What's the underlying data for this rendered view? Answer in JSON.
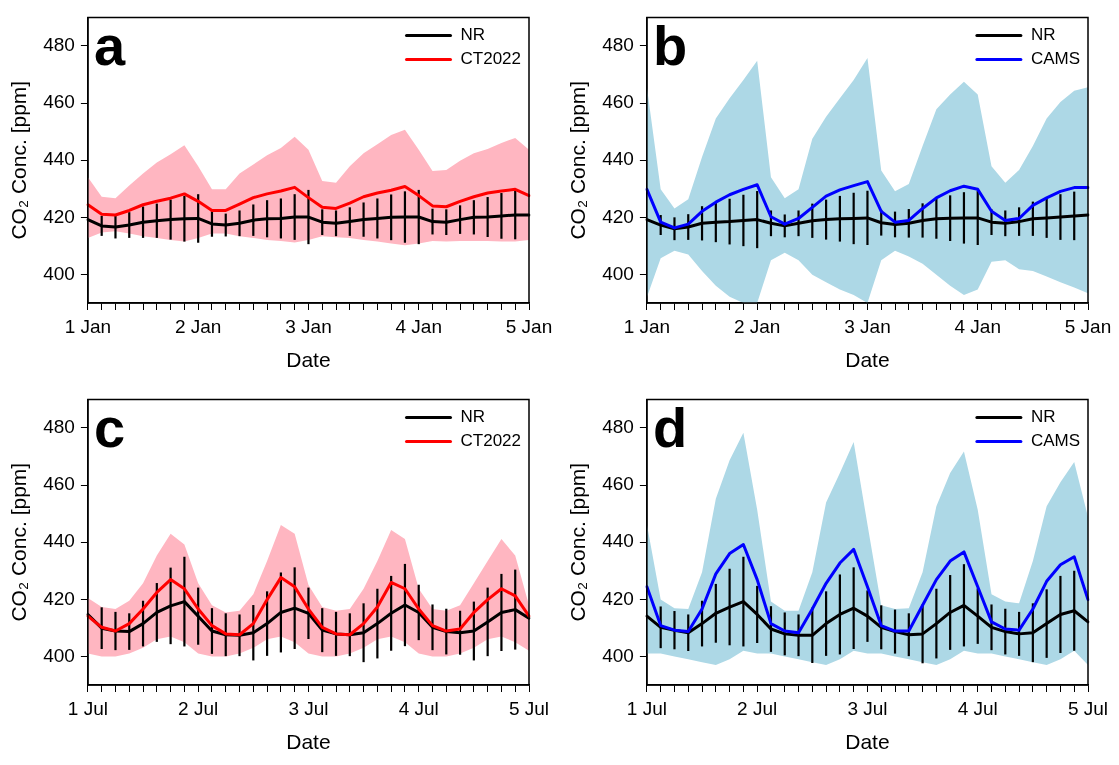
{
  "chart_data": [
    {
      "type": "line",
      "xlabel": "Date",
      "ylabel": "CO₂ Conc. [ppm]",
      "annotations": [
        "a"
      ],
      "legend": "top right",
      "grid": false,
      "ylim": [
        390,
        490
      ],
      "yticks": [
        400,
        420,
        440,
        460,
        480
      ],
      "categories": [
        "1 Jan",
        null,
        null,
        null,
        null,
        null,
        null,
        null,
        "2 Jan",
        null,
        null,
        null,
        null,
        null,
        null,
        null,
        "3 Jan",
        null,
        null,
        null,
        null,
        null,
        null,
        null,
        "4 Jan",
        null,
        null,
        null,
        null,
        null,
        null,
        null,
        "5 Jan"
      ],
      "series": [
        {
          "name": "NR",
          "color": "#000000",
          "values": [
            419.2,
            417.0,
            416.6,
            417.3,
            418.3,
            418.8,
            419.2,
            419.5,
            419.6,
            417.7,
            417.3,
            417.9,
            419.0,
            419.5,
            419.6,
            420.1,
            420.1,
            418.3,
            417.9,
            418.5,
            419.2,
            419.6,
            420.0,
            420.1,
            420.1,
            418.5,
            418.3,
            419.2,
            420.0,
            420.1,
            420.5,
            420.8,
            420.8
          ],
          "errors": [
            null,
            3.5,
            4,
            4.5,
            5.5,
            6,
            7,
            8,
            8.5,
            4.5,
            4,
            4.5,
            5.5,
            6.5,
            7,
            8,
            9.5,
            4.5,
            4.5,
            5,
            6,
            7,
            8,
            9,
            9.5,
            4.5,
            4.5,
            5,
            6,
            7,
            8,
            8.5,
            null
          ]
        },
        {
          "name": "CT2022",
          "color": "#ff0000",
          "values": [
            424.4,
            421.1,
            420.8,
            422.4,
            424.4,
            425.6,
            426.7,
            428.2,
            425.6,
            422.4,
            422.4,
            424.6,
            426.9,
            428.2,
            429.2,
            430.5,
            426.9,
            423.5,
            423.1,
            425.0,
            427.2,
            428.5,
            429.5,
            430.8,
            427.6,
            424.0,
            423.7,
            425.6,
            427.2,
            428.5,
            429.2,
            429.8,
            427.6
          ],
          "upper": [
            434.0,
            427.2,
            426.7,
            431.1,
            435.3,
            439.2,
            442.1,
            445.2,
            437.9,
            429.8,
            429.8,
            435.3,
            438.5,
            441.7,
            444.3,
            448.2,
            443.7,
            432.7,
            432.1,
            437.9,
            442.4,
            445.6,
            448.8,
            450.7,
            443.7,
            436.2,
            436.6,
            439.8,
            442.4,
            443.9,
            446.0,
            447.8,
            443.7
          ],
          "lower": [
            412.8,
            414.7,
            415.1,
            414.3,
            413.4,
            412.8,
            412.1,
            411.5,
            412.8,
            414.3,
            414.3,
            413.4,
            412.8,
            412.1,
            411.7,
            411.2,
            412.1,
            413.4,
            413.0,
            412.8,
            412.1,
            411.5,
            410.8,
            410.2,
            410.8,
            411.7,
            411.5,
            411.7,
            411.7,
            411.7,
            411.5,
            411.5,
            412.1
          ]
        }
      ]
    },
    {
      "type": "line",
      "xlabel": "Date",
      "ylabel": "CO₂ Conc. [ppm]",
      "annotations": [
        "b"
      ],
      "legend": "top right",
      "grid": false,
      "ylim": [
        390,
        490
      ],
      "yticks": [
        400,
        420,
        440,
        460,
        480
      ],
      "categories": [
        "1 Jan",
        null,
        null,
        null,
        null,
        null,
        null,
        null,
        "2 Jan",
        null,
        null,
        null,
        null,
        null,
        null,
        null,
        "3 Jan",
        null,
        null,
        null,
        null,
        null,
        null,
        null,
        "4 Jan",
        null,
        null,
        null,
        null,
        null,
        null,
        null,
        "5 Jan"
      ],
      "series": [
        {
          "name": "NR",
          "color": "#000000",
          "values": [
            419.2,
            417.3,
            416.0,
            416.6,
            417.9,
            418.3,
            418.5,
            418.9,
            419.2,
            417.9,
            417.0,
            417.9,
            418.8,
            419.2,
            419.5,
            419.6,
            419.8,
            418.1,
            417.5,
            417.9,
            418.9,
            419.5,
            419.7,
            419.8,
            419.8,
            418.3,
            417.9,
            418.5,
            419.5,
            419.8,
            420.1,
            420.5,
            420.8
          ],
          "errors": [
            null,
            3.5,
            4,
            4.5,
            6,
            7,
            8,
            9,
            10,
            4.5,
            4,
            4.5,
            6,
            7,
            8,
            9,
            9.5,
            4.5,
            4.5,
            5,
            6,
            7,
            8,
            9,
            9.5,
            4.5,
            4.5,
            5,
            6,
            7,
            8,
            8.5,
            null
          ]
        },
        {
          "name": "CAMS",
          "color": "#0000ff",
          "values": [
            429.8,
            418.3,
            416.3,
            417.6,
            422.1,
            425.3,
            427.9,
            429.8,
            431.4,
            420.2,
            417.6,
            419.6,
            423.5,
            427.4,
            429.6,
            431.1,
            432.5,
            422.1,
            418.3,
            418.9,
            423.1,
            426.8,
            429.3,
            430.9,
            429.8,
            422.1,
            418.9,
            419.6,
            424.2,
            426.8,
            429.1,
            430.4,
            430.4
          ],
          "upper": [
            465.5,
            429.8,
            423.1,
            426.3,
            441.1,
            454.6,
            461.7,
            468.1,
            474.8,
            434.0,
            426.7,
            429.8,
            447.5,
            455.2,
            461.7,
            468.1,
            475.8,
            436.4,
            429.1,
            431.7,
            445.0,
            457.8,
            463.0,
            467.5,
            463.0,
            437.9,
            432.1,
            436.6,
            445.0,
            454.6,
            460.4,
            464.3,
            465.5
          ],
          "lower": [
            392,
            405.7,
            408.3,
            407.0,
            401.2,
            396.0,
            392.2,
            390,
            390,
            405.0,
            407.6,
            405.0,
            399.9,
            397.3,
            394.7,
            392.8,
            390,
            405.0,
            408.3,
            406.3,
            403.7,
            399.9,
            396.0,
            392.8,
            394.7,
            404.4,
            405.0,
            401.8,
            401.2,
            399.3,
            397.3,
            395.4,
            393.4
          ]
        }
      ]
    },
    {
      "type": "line",
      "xlabel": "Date",
      "ylabel": "CO₂ Conc. [ppm]",
      "annotations": [
        "c"
      ],
      "legend": "top right",
      "grid": false,
      "ylim": [
        390,
        490
      ],
      "yticks": [
        400,
        420,
        440,
        460,
        480
      ],
      "categories": [
        "1 Jul",
        null,
        null,
        null,
        null,
        null,
        null,
        null,
        "2 Jul",
        null,
        null,
        null,
        null,
        null,
        null,
        null,
        "3 Jul",
        null,
        null,
        null,
        null,
        null,
        null,
        null,
        "4 Jul",
        null,
        null,
        null,
        null,
        null,
        null,
        null,
        "5 Jul"
      ],
      "series": [
        {
          "name": "NR",
          "color": "#000000",
          "values": [
            414.7,
            409.9,
            408.9,
            408.7,
            411.5,
            415.4,
            417.7,
            419.2,
            414.1,
            408.9,
            407.6,
            407.4,
            408.3,
            411.5,
            415.4,
            416.9,
            415.1,
            409.2,
            407.9,
            407.6,
            408.3,
            411.5,
            415.1,
            418.0,
            415.4,
            410.2,
            408.7,
            408.3,
            408.9,
            412.1,
            415.4,
            416.4,
            413.4
          ],
          "errors": [
            null,
            7.3,
            6.7,
            6.4,
            8,
            10.3,
            13.4,
            15.7,
            10,
            8,
            7.5,
            7.3,
            9.7,
            11.3,
            14,
            14.3,
            9,
            7.7,
            7.7,
            7.5,
            10.3,
            12.2,
            13.1,
            14.4,
            9.7,
            8,
            8,
            7.7,
            10.3,
            12,
            13.5,
            14,
            null
          ]
        },
        {
          "name": "CT2022",
          "color": "#ff0000",
          "values": [
            414.1,
            410.2,
            408.9,
            411.5,
            416.6,
            422.4,
            426.9,
            423.7,
            416.6,
            410.8,
            407.9,
            407.6,
            411.5,
            419.9,
            427.6,
            424.4,
            416.6,
            410.2,
            407.9,
            407.6,
            411.5,
            417.3,
            425.9,
            423.7,
            416.6,
            410.8,
            408.9,
            409.6,
            415.4,
            419.9,
            423.7,
            421.2,
            414.1
          ],
          "upper": [
            420.5,
            417.3,
            416.6,
            419.5,
            425.6,
            435.3,
            443.0,
            439.2,
            425.6,
            417.9,
            415.4,
            416.0,
            421.8,
            433.4,
            446.0,
            443.0,
            425.0,
            417.3,
            416.0,
            416.6,
            423.7,
            433.4,
            444.3,
            441.1,
            423.7,
            416.6,
            416.0,
            417.9,
            425.6,
            433.4,
            441.1,
            435.3,
            417.9
          ],
          "lower": [
            401,
            400,
            400,
            401,
            403,
            406,
            407,
            405,
            401,
            400,
            400,
            401,
            403,
            406,
            407,
            405,
            401,
            400,
            400,
            401,
            403,
            406,
            407,
            405,
            401,
            400,
            400,
            401,
            403,
            406,
            407,
            405,
            402
          ]
        }
      ]
    },
    {
      "type": "line",
      "xlabel": "Date",
      "ylabel": "CO₂ Conc. [ppm]",
      "annotations": [
        "d"
      ],
      "legend": "top right",
      "grid": false,
      "ylim": [
        390,
        490
      ],
      "yticks": [
        400,
        420,
        440,
        460,
        480
      ],
      "categories": [
        "1 Jul",
        null,
        null,
        null,
        null,
        null,
        null,
        null,
        "2 Jul",
        null,
        null,
        null,
        null,
        null,
        null,
        null,
        "3 Jul",
        null,
        null,
        null,
        null,
        null,
        null,
        null,
        "4 Jul",
        null,
        null,
        null,
        null,
        null,
        null,
        null,
        "5 Jul"
      ],
      "series": [
        {
          "name": "NR",
          "color": "#000000",
          "values": [
            414.1,
            410.2,
            409.2,
            408.3,
            411.5,
            415.1,
            417.3,
            419.2,
            414.7,
            409.6,
            407.9,
            407.4,
            407.4,
            411.5,
            414.7,
            416.9,
            414.1,
            410.2,
            408.7,
            407.6,
            407.9,
            411.5,
            415.4,
            417.9,
            414.1,
            410.2,
            408.7,
            407.9,
            408.3,
            411.5,
            414.7,
            416.0,
            412.1
          ],
          "errors": [
            null,
            7.3,
            6.7,
            6.4,
            8,
            10.3,
            13.4,
            15.7,
            10,
            8,
            7.5,
            7.3,
            9.7,
            11.3,
            14,
            14.3,
            9,
            7.7,
            7.7,
            7.5,
            10.3,
            12.2,
            13.1,
            14.4,
            9.7,
            8,
            8,
            7.7,
            10.3,
            12,
            13.5,
            14,
            null
          ]
        },
        {
          "name": "CAMS",
          "color": "#0000ff",
          "values": [
            424.4,
            410.8,
            409.2,
            408.7,
            416.6,
            428.9,
            436.0,
            439.2,
            426.9,
            411.5,
            408.9,
            408.3,
            416.6,
            425.6,
            432.7,
            437.5,
            424.4,
            410.8,
            408.9,
            408.9,
            417.9,
            426.9,
            433.4,
            436.6,
            424.4,
            412.1,
            409.6,
            409.2,
            416.6,
            426.3,
            432.1,
            434.9,
            419.9
          ],
          "upper": [
            446.2,
            419.9,
            416.9,
            416.6,
            429.5,
            455.2,
            468.7,
            478.3,
            451.4,
            419.2,
            416.0,
            416.0,
            429.5,
            453.9,
            464.2,
            475.1,
            446.2,
            417.9,
            416.6,
            416.9,
            429.5,
            452.6,
            464.2,
            471.8,
            451.4,
            421.8,
            419.2,
            418.6,
            433.4,
            452.6,
            461.0,
            468.1,
            448.8
          ],
          "lower": [
            401,
            401,
            400,
            399,
            398,
            397,
            399,
            402,
            401,
            401,
            400,
            399,
            398,
            397,
            399,
            402,
            401,
            401,
            400,
            399,
            398,
            397,
            399,
            402,
            401,
            401,
            400,
            399,
            398,
            397,
            399,
            402,
            397
          ]
        }
      ]
    }
  ]
}
